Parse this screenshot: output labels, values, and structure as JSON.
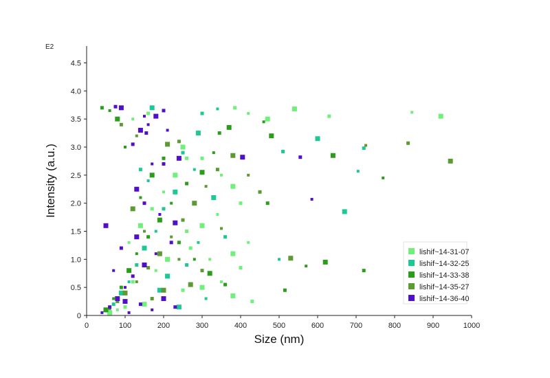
{
  "chart_data": {
    "type": "scatter",
    "title": "",
    "xlabel": "Size (nm)",
    "ylabel": "Intensity (a.u.)",
    "y_exponent_label": "E2",
    "xlim": [
      0,
      1000
    ],
    "ylim": [
      0,
      4.8
    ],
    "x_ticks": [
      0,
      100,
      200,
      300,
      400,
      500,
      600,
      700,
      800,
      900,
      1000
    ],
    "x_tick_labels": [
      "0",
      "100",
      "200",
      "300",
      "400",
      "500",
      "600",
      "700",
      "800",
      "900",
      "1000"
    ],
    "y_ticks": [
      0,
      0.5,
      1.0,
      1.5,
      2.0,
      2.5,
      3.0,
      3.5,
      4.0,
      4.5
    ],
    "y_tick_labels": [
      "0",
      "0.5",
      "1.0",
      "1.5",
      "2.0",
      "2.5",
      "3.0",
      "3.5",
      "4.0",
      "4.5"
    ],
    "grid": false,
    "legend_position": "bottom-right",
    "series": [
      {
        "name": "lishif~14-31-07",
        "color": "#6ef07a",
        "points": [
          [
            540,
            3.68
          ],
          [
            630,
            3.55
          ],
          [
            845,
            3.62
          ],
          [
            920,
            3.55
          ],
          [
            385,
            3.7
          ],
          [
            420,
            3.6
          ],
          [
            470,
            3.5
          ],
          [
            160,
            3.6
          ],
          [
            120,
            3.5
          ],
          [
            250,
            3.0
          ],
          [
            300,
            2.8
          ],
          [
            350,
            2.5
          ],
          [
            380,
            2.3
          ],
          [
            400,
            2.0
          ],
          [
            340,
            1.8
          ],
          [
            300,
            1.6
          ],
          [
            260,
            1.5
          ],
          [
            420,
            1.3
          ],
          [
            380,
            1.1
          ],
          [
            400,
            0.85
          ],
          [
            350,
            0.6
          ],
          [
            300,
            0.5
          ],
          [
            250,
            0.45
          ],
          [
            200,
            0.3
          ],
          [
            150,
            0.2
          ],
          [
            100,
            0.15
          ],
          [
            80,
            0.1
          ],
          [
            60,
            0.05
          ],
          [
            120,
            0.6
          ],
          [
            180,
            0.8
          ],
          [
            210,
            1.0
          ],
          [
            270,
            1.2
          ],
          [
            320,
            1.0
          ],
          [
            380,
            0.35
          ],
          [
            430,
            0.25
          ],
          [
            110,
            1.3
          ],
          [
            140,
            1.6
          ],
          [
            170,
            1.9
          ],
          [
            200,
            2.2
          ],
          [
            230,
            2.5
          ],
          [
            260,
            2.8
          ]
        ]
      },
      {
        "name": "lishif~14-32-25",
        "color": "#1ec796",
        "points": [
          [
            170,
            3.7
          ],
          [
            300,
            3.6
          ],
          [
            340,
            3.68
          ],
          [
            600,
            3.15
          ],
          [
            720,
            2.98
          ],
          [
            705,
            2.57
          ],
          [
            670,
            1.85
          ],
          [
            510,
            2.92
          ],
          [
            500,
            1.0
          ],
          [
            290,
            3.25
          ],
          [
            250,
            2.9
          ],
          [
            280,
            2.6
          ],
          [
            230,
            2.2
          ],
          [
            200,
            1.9
          ],
          [
            180,
            1.5
          ],
          [
            150,
            1.2
          ],
          [
            130,
            0.9
          ],
          [
            110,
            0.6
          ],
          [
            90,
            0.4
          ],
          [
            70,
            0.2
          ],
          [
            50,
            0.08
          ],
          [
            210,
            0.7
          ],
          [
            260,
            0.9
          ],
          [
            290,
            1.3
          ],
          [
            330,
            2.1
          ],
          [
            360,
            1.4
          ],
          [
            310,
            0.3
          ],
          [
            240,
            0.15
          ],
          [
            140,
            2.6
          ],
          [
            160,
            2.4
          ],
          [
            190,
            0.45
          ]
        ]
      },
      {
        "name": "lishif~14-33-38",
        "color": "#2a9e1a",
        "points": [
          [
            370,
            3.35
          ],
          [
            345,
            3.25
          ],
          [
            460,
            3.45
          ],
          [
            480,
            3.2
          ],
          [
            515,
            0.45
          ],
          [
            570,
            0.88
          ],
          [
            620,
            0.95
          ],
          [
            720,
            0.8
          ],
          [
            770,
            2.45
          ],
          [
            640,
            2.85
          ],
          [
            470,
            2.0
          ],
          [
            330,
            2.9
          ],
          [
            300,
            2.55
          ],
          [
            260,
            2.35
          ],
          [
            220,
            2.0
          ],
          [
            190,
            1.7
          ],
          [
            160,
            1.4
          ],
          [
            130,
            1.1
          ],
          [
            110,
            0.8
          ],
          [
            90,
            0.5
          ],
          [
            70,
            0.3
          ],
          [
            50,
            0.1
          ],
          [
            240,
            1.3
          ],
          [
            280,
            1.0
          ],
          [
            320,
            0.75
          ],
          [
            360,
            0.55
          ],
          [
            140,
            2.1
          ],
          [
            170,
            2.5
          ],
          [
            200,
            2.8
          ],
          [
            100,
            3.0
          ],
          [
            80,
            3.5
          ],
          [
            40,
            3.7
          ],
          [
            60,
            3.65
          ]
        ]
      },
      {
        "name": "lishif~14-35-27",
        "color": "#5c9a32",
        "points": [
          [
            945,
            2.75
          ],
          [
            835,
            3.07
          ],
          [
            725,
            3.03
          ],
          [
            530,
            1.02
          ],
          [
            450,
            2.2
          ],
          [
            420,
            2.5
          ],
          [
            380,
            2.85
          ],
          [
            340,
            2.6
          ],
          [
            310,
            2.3
          ],
          [
            280,
            2.0
          ],
          [
            250,
            1.7
          ],
          [
            220,
            1.4
          ],
          [
            190,
            1.1
          ],
          [
            160,
            0.85
          ],
          [
            130,
            0.6
          ],
          [
            100,
            0.4
          ],
          [
            80,
            0.25
          ],
          [
            60,
            0.12
          ],
          [
            270,
            0.55
          ],
          [
            300,
            0.8
          ],
          [
            240,
            1.0
          ],
          [
            200,
            0.45
          ],
          [
            170,
            0.3
          ],
          [
            150,
            1.5
          ],
          [
            120,
            1.9
          ],
          [
            90,
            3.4
          ],
          [
            130,
            3.2
          ],
          [
            210,
            3.05
          ],
          [
            240,
            3.1
          ],
          [
            350,
            1.55
          ]
        ]
      },
      {
        "name": "lishif~14-36-40",
        "color": "#5010c8",
        "points": [
          [
            90,
            3.7
          ],
          [
            75,
            3.72
          ],
          [
            150,
            3.55
          ],
          [
            180,
            3.55
          ],
          [
            200,
            3.65
          ],
          [
            160,
            3.4
          ],
          [
            140,
            3.3
          ],
          [
            155,
            3.25
          ],
          [
            210,
            3.3
          ],
          [
            240,
            2.8
          ],
          [
            200,
            2.7
          ],
          [
            170,
            2.7
          ],
          [
            405,
            2.82
          ],
          [
            555,
            2.82
          ],
          [
            585,
            2.07
          ],
          [
            130,
            2.25
          ],
          [
            150,
            2.0
          ],
          [
            190,
            1.8
          ],
          [
            230,
            1.65
          ],
          [
            220,
            1.3
          ],
          [
            180,
            1.1
          ],
          [
            150,
            0.9
          ],
          [
            120,
            0.7
          ],
          [
            100,
            0.5
          ],
          [
            80,
            0.3
          ],
          [
            60,
            0.15
          ],
          [
            40,
            0.05
          ],
          [
            100,
            0.25
          ],
          [
            140,
            0.2
          ],
          [
            170,
            0.1
          ],
          [
            200,
            0.3
          ],
          [
            230,
            0.15
          ],
          [
            110,
            0.05
          ],
          [
            130,
            1.4
          ],
          [
            90,
            1.2
          ],
          [
            70,
            0.8
          ],
          [
            50,
            1.6
          ],
          [
            120,
            3.05
          ]
        ]
      }
    ]
  }
}
